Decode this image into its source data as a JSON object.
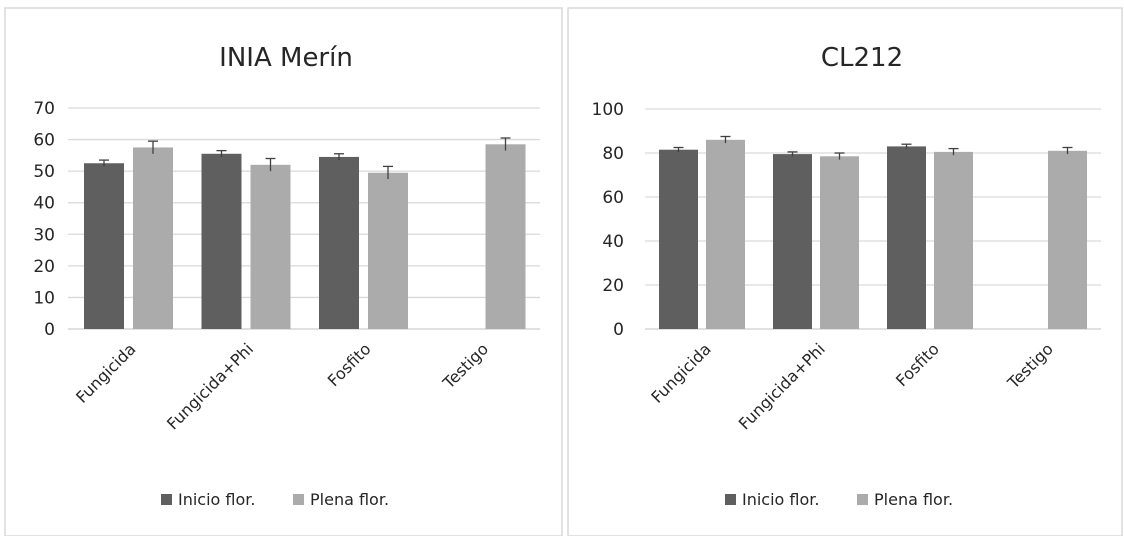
{
  "colors": {
    "inicio": "#5f5f5f",
    "plena": "#ababab",
    "grid": "#d9d9d9",
    "errorbar": "#404040"
  },
  "chart_data": [
    {
      "type": "bar",
      "title": "INIA Merín",
      "categories": [
        "Fungicida",
        "Fungicida+Phi",
        "Fosfito",
        "Testigo"
      ],
      "series": [
        {
          "name": "Inicio flor.",
          "values": [
            52.5,
            55.5,
            54.5,
            null
          ],
          "errors": [
            1.0,
            1.0,
            1.0,
            null
          ]
        },
        {
          "name": "Plena flor.",
          "values": [
            57.5,
            52,
            49.5,
            58.5
          ],
          "errors": [
            2.0,
            2.0,
            2.0,
            2.0
          ]
        }
      ],
      "yticks": [
        "0",
        "10",
        "20",
        "30",
        "40",
        "50",
        "60",
        "70"
      ],
      "ylim": [
        0,
        70
      ],
      "grid": true,
      "legend": "bottom"
    },
    {
      "type": "bar",
      "title": "CL212",
      "categories": [
        "Fungicida",
        "Fungicida+Phi",
        "Fosfito",
        "Testigo"
      ],
      "series": [
        {
          "name": "Inicio flor.",
          "values": [
            81.5,
            79.5,
            83,
            null
          ],
          "errors": [
            1.0,
            1.0,
            1.0,
            null
          ]
        },
        {
          "name": "Plena flor.",
          "values": [
            86,
            78.5,
            80.5,
            81
          ],
          "errors": [
            1.5,
            1.5,
            1.5,
            1.5
          ]
        }
      ],
      "yticks": [
        "0",
        "20",
        "40",
        "60",
        "80",
        "100"
      ],
      "ylim": [
        0,
        100
      ],
      "grid": true,
      "legend": "bottom"
    }
  ]
}
